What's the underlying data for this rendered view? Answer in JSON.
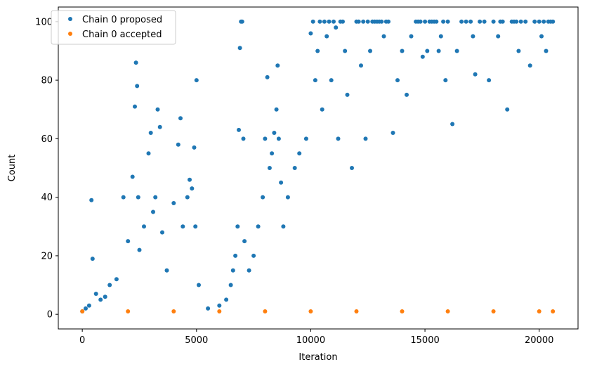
{
  "chart_data": {
    "type": "scatter",
    "title": "",
    "xlabel": "Iteration",
    "ylabel": "Count",
    "xlim": [
      -1050,
      21700
    ],
    "ylim": [
      -5,
      105
    ],
    "xticks": [
      0,
      5000,
      10000,
      15000,
      20000
    ],
    "yticks": [
      0,
      20,
      40,
      60,
      80,
      100
    ],
    "grid": false,
    "legend_position": "top-left",
    "series": [
      {
        "name": "Chain 0 proposed",
        "color": "#1f77b4",
        "marker": "circle",
        "x": [
          0,
          150,
          300,
          400,
          450,
          600,
          800,
          1000,
          1200,
          1500,
          1800,
          2000,
          2200,
          2300,
          2350,
          2400,
          2450,
          2500,
          2700,
          2900,
          3000,
          3100,
          3200,
          3300,
          3400,
          3500,
          3700,
          4000,
          4200,
          4300,
          4400,
          4600,
          4700,
          4800,
          4900,
          4950,
          5000,
          5100,
          5500,
          6000,
          6300,
          6500,
          6600,
          6700,
          6800,
          6850,
          6900,
          6950,
          7000,
          7050,
          7100,
          7300,
          7500,
          7700,
          7900,
          8000,
          8100,
          8200,
          8300,
          8400,
          8500,
          8550,
          8600,
          8700,
          8800,
          9000,
          9300,
          9500,
          9800,
          10000,
          10100,
          10200,
          10300,
          10400,
          10500,
          10600,
          10700,
          10800,
          10900,
          11000,
          11100,
          11200,
          11300,
          11400,
          11500,
          11600,
          11800,
          12000,
          12100,
          12200,
          12300,
          12400,
          12500,
          12600,
          12700,
          12800,
          12900,
          13000,
          13100,
          13200,
          13300,
          13400,
          13600,
          13800,
          14000,
          14200,
          14400,
          14600,
          14700,
          14800,
          14900,
          15000,
          15100,
          15200,
          15300,
          15400,
          15500,
          15600,
          15700,
          15800,
          15900,
          16000,
          16200,
          16400,
          16600,
          16800,
          17000,
          17100,
          17200,
          17400,
          17600,
          17800,
          18000,
          18200,
          18300,
          18400,
          18600,
          18800,
          18900,
          19000,
          19100,
          19200,
          19400,
          19600,
          19800,
          20000,
          20100,
          20200,
          20300,
          20400,
          20500,
          20600
        ],
        "y": [
          1,
          2,
          3,
          39,
          19,
          7,
          5,
          6,
          10,
          12,
          40,
          25,
          47,
          71,
          86,
          78,
          40,
          22,
          30,
          55,
          62,
          35,
          40,
          70,
          64,
          28,
          15,
          38,
          58,
          67,
          30,
          40,
          46,
          43,
          57,
          30,
          80,
          10,
          2,
          3,
          5,
          10,
          15,
          20,
          30,
          63,
          91,
          100,
          100,
          60,
          25,
          15,
          20,
          30,
          40,
          60,
          81,
          50,
          55,
          62,
          70,
          85,
          60,
          45,
          30,
          40,
          50,
          55,
          60,
          96,
          100,
          80,
          90,
          100,
          70,
          100,
          95,
          100,
          80,
          100,
          98,
          60,
          100,
          100,
          90,
          75,
          50,
          100,
          100,
          85,
          100,
          60,
          100,
          90,
          100,
          100,
          100,
          100,
          100,
          95,
          100,
          100,
          62,
          80,
          90,
          75,
          95,
          100,
          100,
          100,
          88,
          100,
          90,
          100,
          100,
          100,
          100,
          90,
          95,
          100,
          80,
          100,
          65,
          90,
          100,
          100,
          100,
          95,
          82,
          100,
          100,
          80,
          100,
          95,
          100,
          100,
          70,
          100,
          100,
          100,
          90,
          100,
          100,
          85,
          100,
          100,
          95,
          100,
          90,
          100,
          100,
          100
        ]
      },
      {
        "name": "Chain 0 accepted",
        "color": "#ff7f0e",
        "marker": "circle",
        "x": [
          0,
          2000,
          4000,
          6000,
          8000,
          10000,
          12000,
          14000,
          16000,
          18000,
          20000,
          20600
        ],
        "y": [
          1,
          1,
          1,
          1,
          1,
          1,
          1,
          1,
          1,
          1,
          1,
          1
        ]
      }
    ]
  }
}
